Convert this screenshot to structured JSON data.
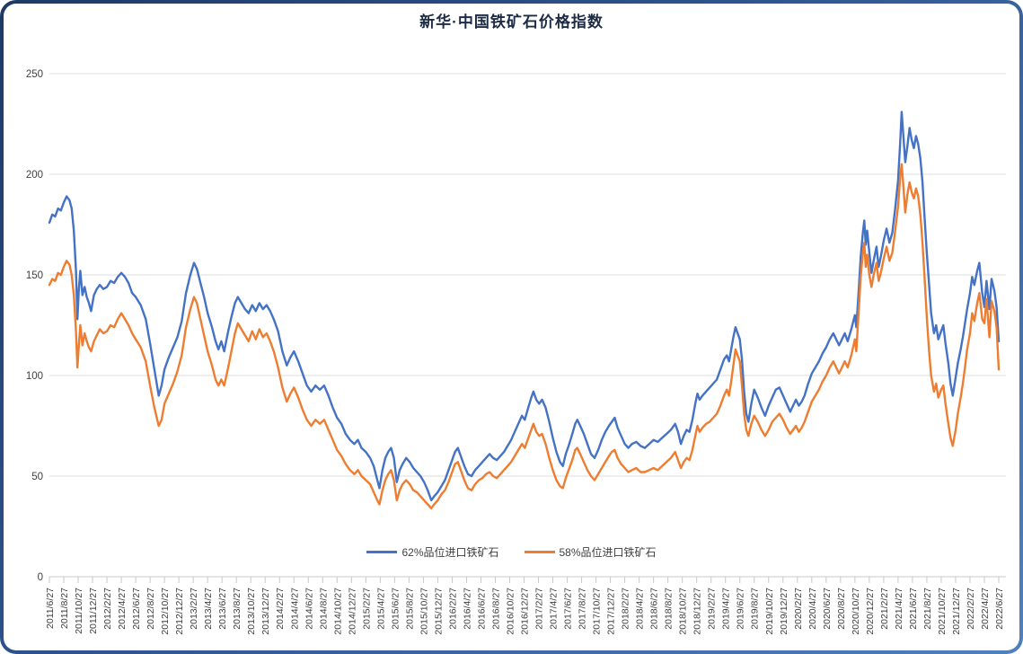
{
  "title": "新华·中国铁矿石价格指数",
  "frame": {
    "border_gradient_start": "#1E3A66",
    "border_gradient_end": "#4F81BD",
    "background": "#FFFFFF"
  },
  "colors": {
    "gridline": "#DCDCDC",
    "axis_line": "#C9C9C9",
    "tick": "#C9C9C9",
    "axis_label": "#404040",
    "title_text": "#1D2B45"
  },
  "chart_data": {
    "type": "line",
    "title": "新华·中国铁矿石价格指数",
    "grid": true,
    "legend_position": "bottom-center",
    "y_axis": {
      "min": 0,
      "max": 250,
      "ticks": [
        0,
        50,
        100,
        150,
        200,
        250
      ]
    },
    "x_axis": {
      "tick_every_months": 2,
      "labels": [
        "2011/6/27",
        "2011/8/27",
        "2011/10/27",
        "2011/12/27",
        "2012/2/27",
        "2012/4/27",
        "2012/6/27",
        "2012/8/27",
        "2012/10/27",
        "2012/12/27",
        "2013/2/27",
        "2013/4/27",
        "2013/6/27",
        "2013/8/27",
        "2013/10/27",
        "2013/12/27",
        "2014/2/27",
        "2014/4/27",
        "2014/6/27",
        "2014/8/27",
        "2014/10/27",
        "2014/12/27",
        "2015/2/27",
        "2015/4/27",
        "2015/6/27",
        "2015/8/27",
        "2015/10/27",
        "2015/12/27",
        "2016/2/27",
        "2016/4/27",
        "2016/6/27",
        "2016/8/27",
        "2016/10/27",
        "2016/12/27",
        "2017/2/27",
        "2017/4/27",
        "2017/6/27",
        "2017/8/27",
        "2017/10/27",
        "2017/12/27",
        "2018/2/27",
        "2018/4/27",
        "2018/6/27",
        "2018/8/27",
        "2018/10/27",
        "2018/12/27",
        "2019/2/27",
        "2019/4/27",
        "2019/6/27",
        "2019/8/27",
        "2019/10/27",
        "2019/12/27",
        "2020/2/27",
        "2020/4/27",
        "2020/6/27",
        "2020/8/27",
        "2020/10/27",
        "2020/12/27",
        "2021/2/27",
        "2021/4/27",
        "2021/6/27",
        "2021/8/27",
        "2021/10/27",
        "2021/12/27",
        "2022/2/27",
        "2022/4/27",
        "2022/6/27"
      ]
    },
    "columns": [
      "months_since_2011_06_27",
      "62%品位进口铁矿石",
      "58%品位进口铁矿石"
    ],
    "series": [
      {
        "name": "62%品位进口铁矿石",
        "color": "#4472C4",
        "column": 1
      },
      {
        "name": "58%品位进口铁矿石",
        "color": "#ED7D31",
        "column": 2
      }
    ],
    "points": [
      [
        0,
        176,
        145
      ],
      [
        0.4,
        180,
        148
      ],
      [
        0.8,
        179,
        147
      ],
      [
        1.2,
        183,
        151
      ],
      [
        1.6,
        182,
        150
      ],
      [
        2,
        186,
        154
      ],
      [
        2.4,
        189,
        157
      ],
      [
        2.8,
        187,
        155
      ],
      [
        3.1,
        183,
        150
      ],
      [
        3.4,
        172,
        140
      ],
      [
        3.7,
        152,
        122
      ],
      [
        3.9,
        128,
        104
      ],
      [
        4.1,
        143,
        115
      ],
      [
        4.3,
        152,
        125
      ],
      [
        4.6,
        140,
        115
      ],
      [
        4.9,
        144,
        121
      ],
      [
        5.2,
        139,
        117
      ],
      [
        5.5,
        136,
        114
      ],
      [
        5.8,
        132,
        112
      ],
      [
        6.2,
        140,
        117
      ],
      [
        6.6,
        143,
        120
      ],
      [
        7,
        145,
        123
      ],
      [
        7.5,
        143,
        121
      ],
      [
        8,
        144,
        122
      ],
      [
        8.5,
        147,
        125
      ],
      [
        9,
        146,
        124
      ],
      [
        9.5,
        149,
        128
      ],
      [
        10,
        151,
        131
      ],
      [
        10.5,
        149,
        128
      ],
      [
        11,
        146,
        125
      ],
      [
        11.5,
        141,
        121
      ],
      [
        12,
        139,
        118
      ],
      [
        12.7,
        135,
        114
      ],
      [
        13.4,
        128,
        107
      ],
      [
        14,
        116,
        95
      ],
      [
        14.6,
        103,
        84
      ],
      [
        15.2,
        90,
        75
      ],
      [
        15.6,
        95,
        78
      ],
      [
        16,
        103,
        86
      ],
      [
        16.6,
        109,
        91
      ],
      [
        17.2,
        114,
        96
      ],
      [
        17.8,
        119,
        102
      ],
      [
        18.4,
        127,
        110
      ],
      [
        19,
        141,
        124
      ],
      [
        19.6,
        150,
        133
      ],
      [
        20.1,
        156,
        139
      ],
      [
        20.5,
        153,
        136
      ],
      [
        21,
        146,
        128
      ],
      [
        21.5,
        139,
        120
      ],
      [
        22,
        131,
        112
      ],
      [
        22.6,
        124,
        105
      ],
      [
        23.1,
        117,
        98
      ],
      [
        23.5,
        113,
        95
      ],
      [
        23.9,
        117,
        98
      ],
      [
        24.3,
        112,
        95
      ],
      [
        24.8,
        121,
        103
      ],
      [
        25.3,
        129,
        112
      ],
      [
        25.8,
        136,
        121
      ],
      [
        26.2,
        139,
        126
      ],
      [
        26.7,
        136,
        123
      ],
      [
        27.2,
        133,
        120
      ],
      [
        27.7,
        131,
        117
      ],
      [
        28.2,
        135,
        122
      ],
      [
        28.7,
        132,
        118
      ],
      [
        29.2,
        136,
        123
      ],
      [
        29.7,
        133,
        119
      ],
      [
        30.2,
        135,
        121
      ],
      [
        30.7,
        132,
        117
      ],
      [
        31.2,
        128,
        112
      ],
      [
        31.8,
        122,
        104
      ],
      [
        32.4,
        112,
        94
      ],
      [
        33,
        105,
        87
      ],
      [
        33.5,
        109,
        91
      ],
      [
        34,
        112,
        94
      ],
      [
        34.6,
        107,
        89
      ],
      [
        35.2,
        101,
        83
      ],
      [
        35.8,
        95,
        78
      ],
      [
        36.4,
        92,
        75
      ],
      [
        37,
        95,
        78
      ],
      [
        37.6,
        93,
        76
      ],
      [
        38.2,
        95,
        78
      ],
      [
        38.8,
        90,
        73
      ],
      [
        39.4,
        84,
        68
      ],
      [
        40,
        79,
        63
      ],
      [
        40.6,
        76,
        60
      ],
      [
        41.2,
        71,
        56
      ],
      [
        41.8,
        68,
        53
      ],
      [
        42.4,
        66,
        51
      ],
      [
        42.9,
        68,
        53
      ],
      [
        43.4,
        64,
        50
      ],
      [
        44,
        62,
        48
      ],
      [
        44.6,
        59,
        46
      ],
      [
        45.1,
        55,
        42
      ],
      [
        45.6,
        48,
        38
      ],
      [
        45.9,
        44,
        36
      ],
      [
        46.3,
        53,
        43
      ],
      [
        46.7,
        59,
        48
      ],
      [
        47.1,
        62,
        51
      ],
      [
        47.5,
        64,
        53
      ],
      [
        47.9,
        59,
        48
      ],
      [
        48.3,
        47,
        38
      ],
      [
        48.7,
        53,
        43
      ],
      [
        49.1,
        56,
        46
      ],
      [
        49.6,
        59,
        48
      ],
      [
        50.1,
        57,
        46
      ],
      [
        50.6,
        54,
        43
      ],
      [
        51.1,
        52,
        42
      ],
      [
        51.6,
        50,
        40
      ],
      [
        52.1,
        47,
        38
      ],
      [
        52.6,
        43,
        36
      ],
      [
        53.1,
        38,
        34
      ],
      [
        53.5,
        40,
        36
      ],
      [
        54,
        42,
        38
      ],
      [
        54.5,
        45,
        41
      ],
      [
        55,
        48,
        43
      ],
      [
        55.5,
        53,
        47
      ],
      [
        56,
        58,
        52
      ],
      [
        56.4,
        62,
        56
      ],
      [
        56.8,
        64,
        57
      ],
      [
        57.2,
        60,
        53
      ],
      [
        57.7,
        55,
        48
      ],
      [
        58.2,
        51,
        44
      ],
      [
        58.7,
        50,
        43
      ],
      [
        59.2,
        53,
        46
      ],
      [
        59.7,
        55,
        48
      ],
      [
        60.2,
        57,
        49
      ],
      [
        60.7,
        59,
        51
      ],
      [
        61.2,
        61,
        52
      ],
      [
        61.7,
        59,
        50
      ],
      [
        62.2,
        58,
        49
      ],
      [
        62.7,
        60,
        51
      ],
      [
        63.2,
        62,
        53
      ],
      [
        63.7,
        65,
        55
      ],
      [
        64.2,
        68,
        57
      ],
      [
        64.7,
        72,
        60
      ],
      [
        65.2,
        76,
        63
      ],
      [
        65.7,
        80,
        66
      ],
      [
        66.1,
        78,
        64
      ],
      [
        66.5,
        83,
        68
      ],
      [
        67,
        89,
        73
      ],
      [
        67.3,
        92,
        76
      ],
      [
        67.7,
        88,
        72
      ],
      [
        68.1,
        86,
        70
      ],
      [
        68.5,
        88,
        71
      ],
      [
        69,
        84,
        66
      ],
      [
        69.5,
        77,
        59
      ],
      [
        70,
        69,
        53
      ],
      [
        70.5,
        62,
        48
      ],
      [
        71,
        57,
        45
      ],
      [
        71.4,
        55,
        44
      ],
      [
        71.8,
        61,
        49
      ],
      [
        72.2,
        65,
        53
      ],
      [
        72.7,
        71,
        58
      ],
      [
        73.1,
        76,
        63
      ],
      [
        73.4,
        78,
        64
      ],
      [
        73.8,
        75,
        61
      ],
      [
        74.3,
        71,
        57
      ],
      [
        74.8,
        66,
        53
      ],
      [
        75.3,
        61,
        50
      ],
      [
        75.8,
        59,
        48
      ],
      [
        76.3,
        63,
        51
      ],
      [
        76.8,
        68,
        54
      ],
      [
        77.3,
        72,
        57
      ],
      [
        77.8,
        75,
        60
      ],
      [
        78.2,
        77,
        62
      ],
      [
        78.6,
        79,
        63
      ],
      [
        79,
        74,
        59
      ],
      [
        79.5,
        70,
        56
      ],
      [
        80,
        66,
        54
      ],
      [
        80.5,
        64,
        52
      ],
      [
        81,
        66,
        53
      ],
      [
        81.6,
        67,
        54
      ],
      [
        82.2,
        65,
        52
      ],
      [
        82.8,
        64,
        52
      ],
      [
        83.4,
        66,
        53
      ],
      [
        84,
        68,
        54
      ],
      [
        84.6,
        67,
        53
      ],
      [
        85.2,
        69,
        55
      ],
      [
        85.8,
        71,
        57
      ],
      [
        86.4,
        73,
        59
      ],
      [
        87,
        76,
        62
      ],
      [
        87.4,
        72,
        58
      ],
      [
        87.8,
        66,
        54
      ],
      [
        88.2,
        70,
        57
      ],
      [
        88.6,
        73,
        59
      ],
      [
        89,
        72,
        58
      ],
      [
        89.4,
        78,
        63
      ],
      [
        89.8,
        86,
        70
      ],
      [
        90.1,
        91,
        75
      ],
      [
        90.4,
        88,
        72
      ],
      [
        90.8,
        90,
        74
      ],
      [
        91.3,
        92,
        76
      ],
      [
        91.8,
        94,
        77
      ],
      [
        92.3,
        96,
        79
      ],
      [
        92.8,
        98,
        81
      ],
      [
        93.3,
        103,
        85
      ],
      [
        93.8,
        108,
        90
      ],
      [
        94.2,
        110,
        93
      ],
      [
        94.5,
        107,
        90
      ],
      [
        94.8,
        113,
        97
      ],
      [
        95.1,
        119,
        105
      ],
      [
        95.4,
        124,
        113
      ],
      [
        95.7,
        121,
        110
      ],
      [
        96,
        118,
        107
      ],
      [
        96.3,
        108,
        95
      ],
      [
        96.6,
        92,
        81
      ],
      [
        96.9,
        81,
        73
      ],
      [
        97.2,
        77,
        70
      ],
      [
        97.6,
        86,
        76
      ],
      [
        98,
        93,
        80
      ],
      [
        98.5,
        89,
        77
      ],
      [
        99,
        84,
        73
      ],
      [
        99.5,
        80,
        70
      ],
      [
        100,
        85,
        73
      ],
      [
        100.5,
        89,
        77
      ],
      [
        101,
        93,
        79
      ],
      [
        101.5,
        94,
        81
      ],
      [
        102,
        90,
        78
      ],
      [
        102.5,
        86,
        74
      ],
      [
        103,
        82,
        71
      ],
      [
        103.4,
        85,
        73
      ],
      [
        103.8,
        88,
        75
      ],
      [
        104.2,
        85,
        72
      ],
      [
        104.6,
        87,
        74
      ],
      [
        105,
        90,
        77
      ],
      [
        105.5,
        96,
        82
      ],
      [
        106,
        101,
        87
      ],
      [
        106.5,
        104,
        90
      ],
      [
        107,
        107,
        93
      ],
      [
        107.5,
        111,
        97
      ],
      [
        108,
        114,
        100
      ],
      [
        108.5,
        118,
        104
      ],
      [
        109,
        121,
        107
      ],
      [
        109.4,
        118,
        104
      ],
      [
        109.8,
        115,
        101
      ],
      [
        110.2,
        118,
        104
      ],
      [
        110.6,
        121,
        107
      ],
      [
        111,
        117,
        104
      ],
      [
        111.5,
        123,
        110
      ],
      [
        112,
        130,
        118
      ],
      [
        112.2,
        124,
        112
      ],
      [
        112.5,
        141,
        131
      ],
      [
        112.8,
        159,
        149
      ],
      [
        113.1,
        171,
        161
      ],
      [
        113.3,
        177,
        166
      ],
      [
        113.5,
        165,
        154
      ],
      [
        113.7,
        172,
        160
      ],
      [
        114,
        161,
        150
      ],
      [
        114.3,
        151,
        144
      ],
      [
        114.6,
        157,
        150
      ],
      [
        115,
        164,
        156
      ],
      [
        115.3,
        154,
        147
      ],
      [
        115.6,
        159,
        151
      ],
      [
        116,
        167,
        158
      ],
      [
        116.4,
        173,
        164
      ],
      [
        116.8,
        166,
        157
      ],
      [
        117.2,
        171,
        161
      ],
      [
        117.6,
        183,
        172
      ],
      [
        118,
        197,
        184
      ],
      [
        118.3,
        216,
        199
      ],
      [
        118.5,
        231,
        205
      ],
      [
        118.7,
        221,
        196
      ],
      [
        119,
        206,
        181
      ],
      [
        119.3,
        214,
        190
      ],
      [
        119.6,
        223,
        196
      ],
      [
        119.9,
        217,
        191
      ],
      [
        120.2,
        213,
        188
      ],
      [
        120.5,
        219,
        193
      ],
      [
        120.8,
        215,
        189
      ],
      [
        121.1,
        208,
        180
      ],
      [
        121.4,
        196,
        166
      ],
      [
        121.7,
        178,
        148
      ],
      [
        122,
        161,
        129
      ],
      [
        122.3,
        146,
        113
      ],
      [
        122.6,
        131,
        100
      ],
      [
        123,
        121,
        92
      ],
      [
        123.3,
        125,
        96
      ],
      [
        123.6,
        118,
        89
      ],
      [
        124,
        122,
        93
      ],
      [
        124.3,
        125,
        95
      ],
      [
        124.6,
        116,
        86
      ],
      [
        125,
        106,
        76
      ],
      [
        125.3,
        96,
        69
      ],
      [
        125.6,
        90,
        65
      ],
      [
        126,
        99,
        73
      ],
      [
        126.3,
        106,
        81
      ],
      [
        126.7,
        113,
        89
      ],
      [
        127,
        119,
        96
      ],
      [
        127.3,
        126,
        104
      ],
      [
        127.6,
        133,
        113
      ],
      [
        128,
        141,
        121
      ],
      [
        128.3,
        149,
        131
      ],
      [
        128.6,
        145,
        127
      ],
      [
        129,
        152,
        136
      ],
      [
        129.3,
        156,
        141
      ],
      [
        129.7,
        141,
        128
      ],
      [
        130,
        134,
        126
      ],
      [
        130.3,
        147,
        138
      ],
      [
        130.7,
        133,
        119
      ],
      [
        131,
        148,
        137
      ],
      [
        131.4,
        142,
        132
      ],
      [
        131.7,
        134,
        124
      ],
      [
        132,
        117,
        103
      ]
    ]
  },
  "legend": {
    "item1": "62%品位进口铁矿石",
    "item2": "58%品位进口铁矿石"
  }
}
